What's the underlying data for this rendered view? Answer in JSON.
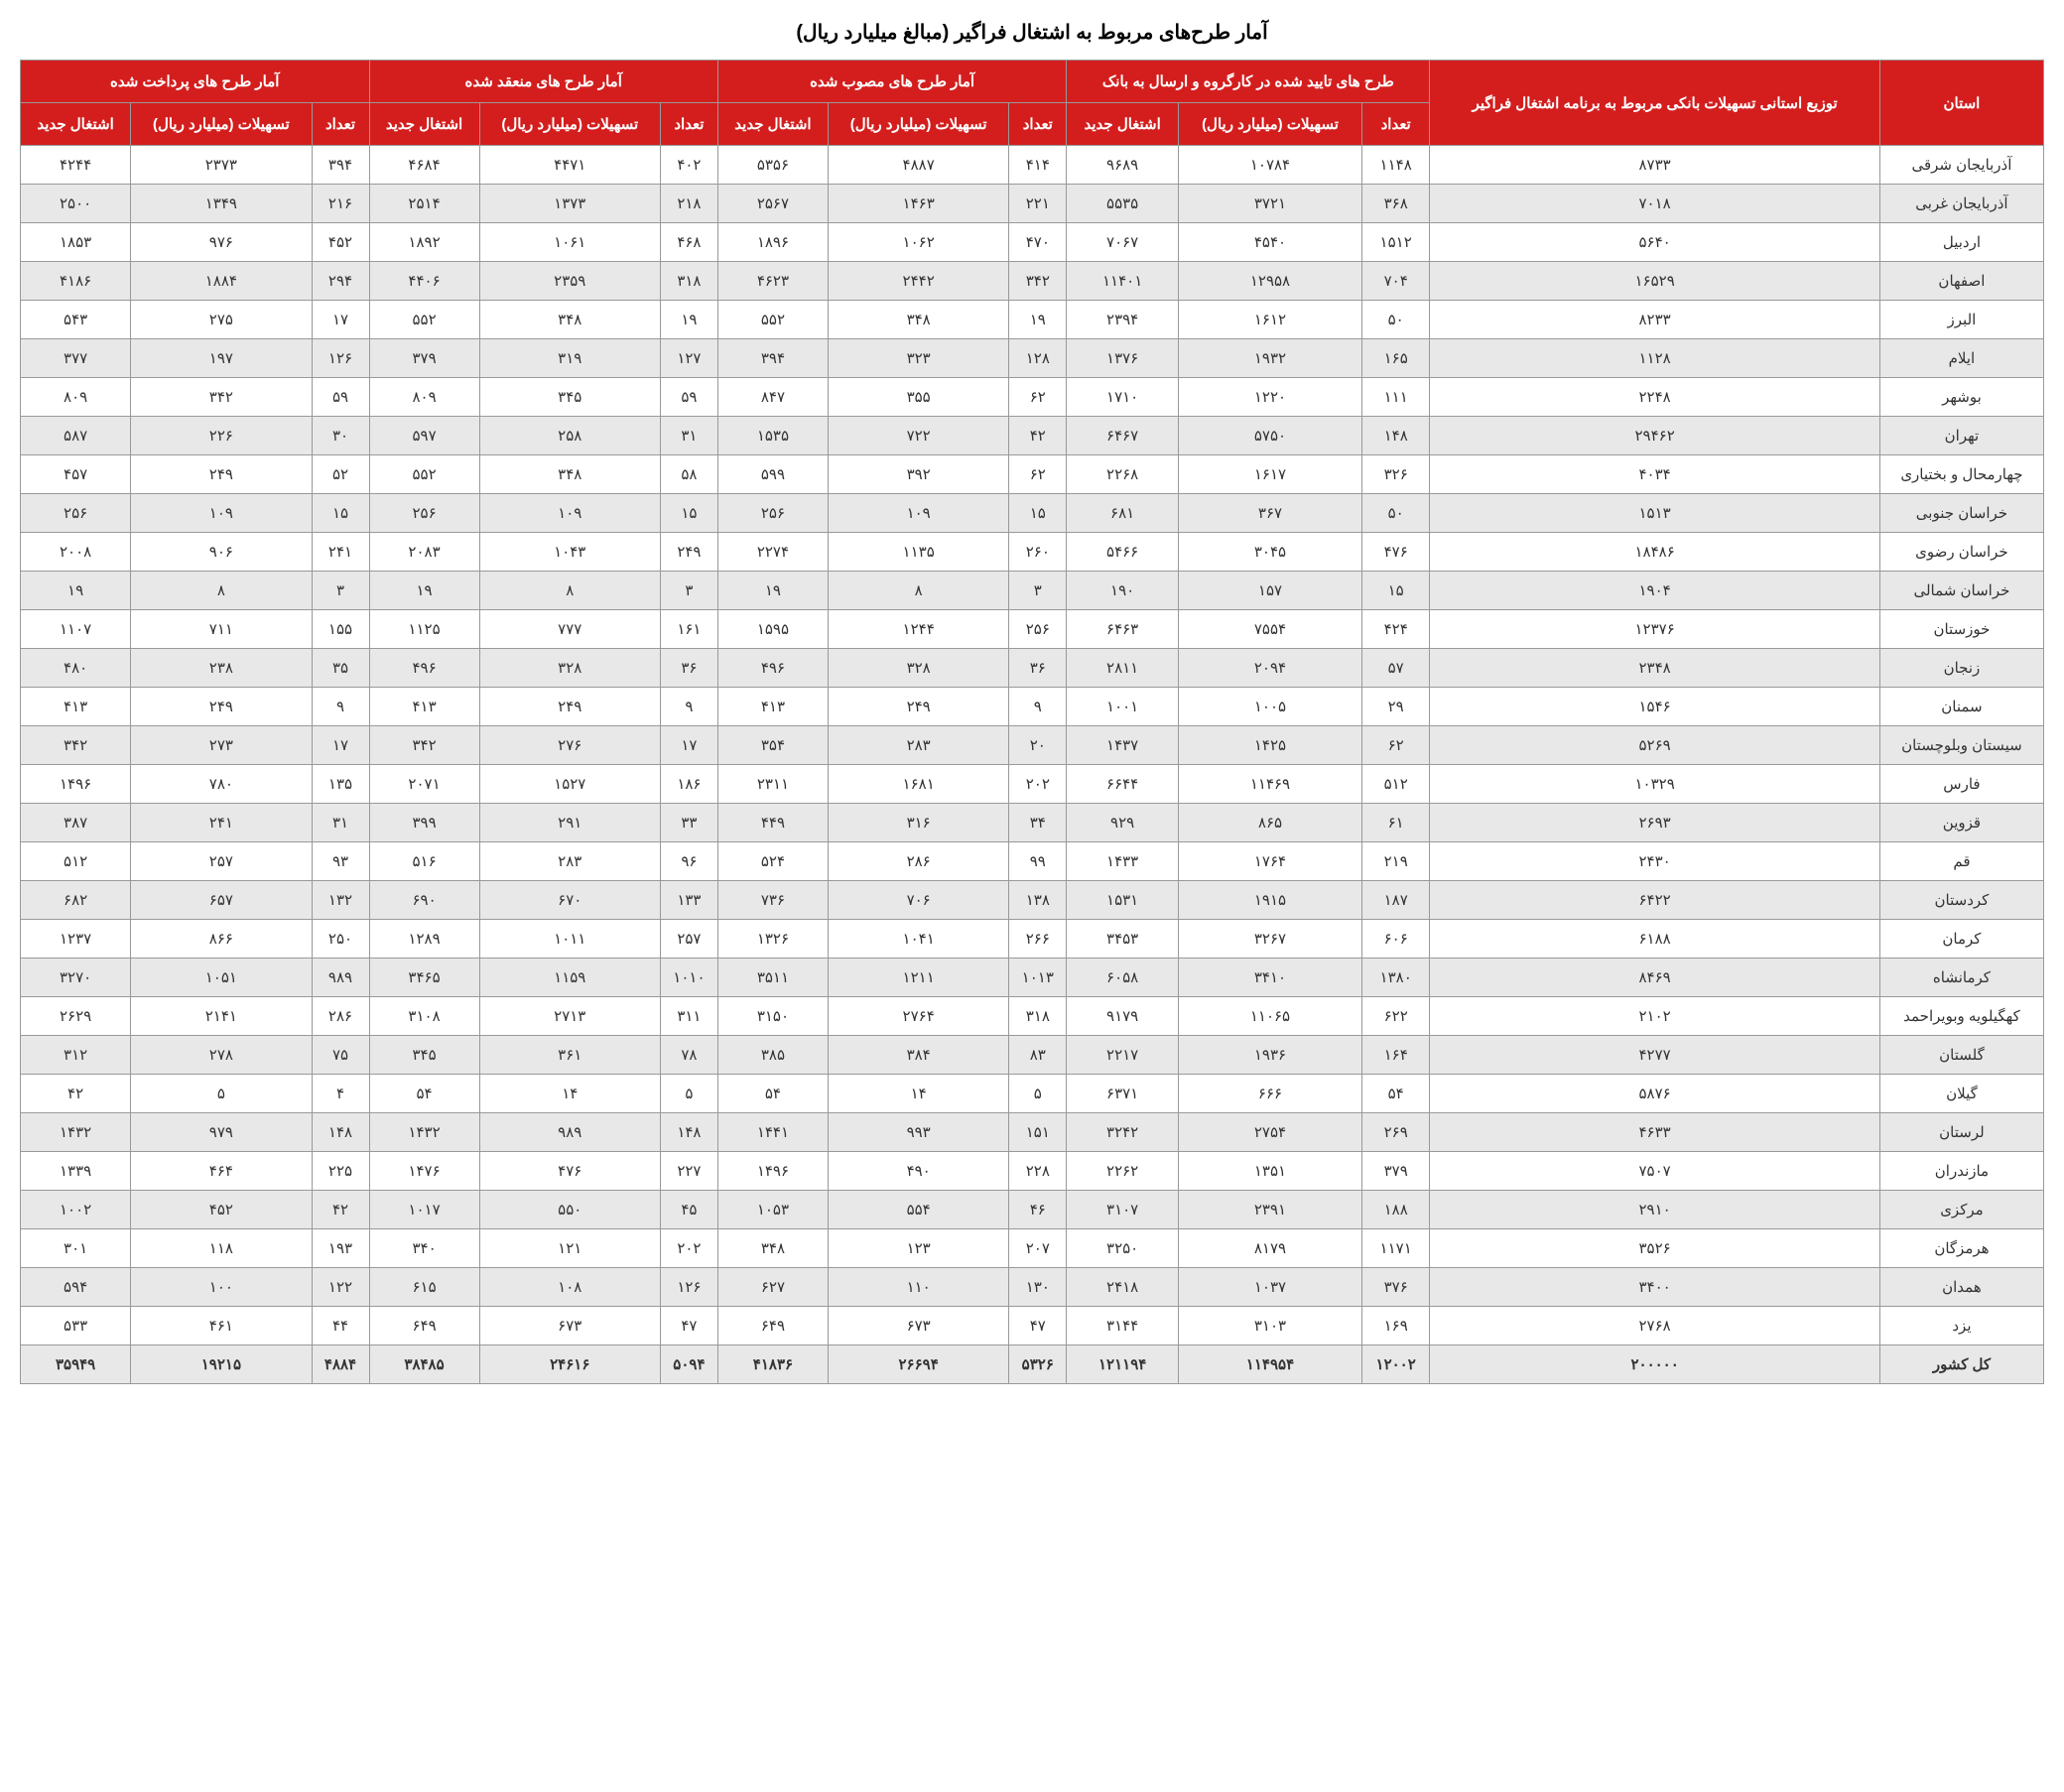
{
  "title": "آمار طرح‌های مربوط به اشتغال فراگیر (مبالغ میلیارد ریال)",
  "header_groups": [
    {
      "label": "استان",
      "colspan": 1,
      "rowspan": 2
    },
    {
      "label": "توزیع استانی تسهیلات بانکی مربوط به برنامه اشتغال فراگیر",
      "colspan": 1,
      "rowspan": 2
    },
    {
      "label": "طرح های تایید شده در کارگروه و ارسال به بانک",
      "colspan": 3,
      "rowspan": 1
    },
    {
      "label": "آمار طرح های مصوب شده",
      "colspan": 3,
      "rowspan": 1
    },
    {
      "label": "آمار طرح های منعقد شده",
      "colspan": 3,
      "rowspan": 1
    },
    {
      "label": "آمار طرح های پرداخت شده",
      "colspan": 3,
      "rowspan": 1
    }
  ],
  "sub_headers": [
    "تعداد",
    "تسهیلات (میلیارد ریال)",
    "اشتغال جدید",
    "تعداد",
    "تسهیلات (میلیارد ریال)",
    "اشتغال جدید",
    "تعداد",
    "تسهیلات (میلیارد ریال)",
    "اشتغال جدید",
    "تعداد",
    "تسهیلات (میلیارد ریال)",
    "اشتغال جدید"
  ],
  "rows": [
    [
      "آذربایجان شرقی",
      "۸۷۳۳",
      "۱۱۴۸",
      "۱۰۷۸۴",
      "۹۶۸۹",
      "۴۱۴",
      "۴۸۸۷",
      "۵۳۵۶",
      "۴۰۲",
      "۴۴۷۱",
      "۴۶۸۴",
      "۳۹۴",
      "۲۳۷۳",
      "۴۲۴۴"
    ],
    [
      "آذربایجان غربی",
      "۷۰۱۸",
      "۳۶۸",
      "۳۷۲۱",
      "۵۵۳۵",
      "۲۲۱",
      "۱۴۶۳",
      "۲۵۶۷",
      "۲۱۸",
      "۱۳۷۳",
      "۲۵۱۴",
      "۲۱۶",
      "۱۳۴۹",
      "۲۵۰۰"
    ],
    [
      "اردبیل",
      "۵۶۴۰",
      "۱۵۱۲",
      "۴۵۴۰",
      "۷۰۶۷",
      "۴۷۰",
      "۱۰۶۲",
      "۱۸۹۶",
      "۴۶۸",
      "۱۰۶۱",
      "۱۸۹۲",
      "۴۵۲",
      "۹۷۶",
      "۱۸۵۳"
    ],
    [
      "اصفهان",
      "۱۶۵۲۹",
      "۷۰۴",
      "۱۲۹۵۸",
      "۱۱۴۰۱",
      "۳۴۲",
      "۲۴۴۲",
      "۴۶۲۳",
      "۳۱۸",
      "۲۳۵۹",
      "۴۴۰۶",
      "۲۹۴",
      "۱۸۸۴",
      "۴۱۸۶"
    ],
    [
      "البرز",
      "۸۲۳۳",
      "۵۰",
      "۱۶۱۲",
      "۲۳۹۴",
      "۱۹",
      "۳۴۸",
      "۵۵۲",
      "۱۹",
      "۳۴۸",
      "۵۵۲",
      "۱۷",
      "۲۷۵",
      "۵۴۳"
    ],
    [
      "ایلام",
      "۱۱۲۸",
      "۱۶۵",
      "۱۹۳۲",
      "۱۳۷۶",
      "۱۲۸",
      "۳۲۳",
      "۳۹۴",
      "۱۲۷",
      "۳۱۹",
      "۳۷۹",
      "۱۲۶",
      "۱۹۷",
      "۳۷۷"
    ],
    [
      "بوشهر",
      "۲۲۴۸",
      "۱۱۱",
      "۱۲۲۰",
      "۱۷۱۰",
      "۶۲",
      "۳۵۵",
      "۸۴۷",
      "۵۹",
      "۳۴۵",
      "۸۰۹",
      "۵۹",
      "۳۴۲",
      "۸۰۹"
    ],
    [
      "تهران",
      "۲۹۴۶۲",
      "۱۴۸",
      "۵۷۵۰",
      "۶۴۶۷",
      "۴۲",
      "۷۲۲",
      "۱۵۳۵",
      "۳۱",
      "۲۵۸",
      "۵۹۷",
      "۳۰",
      "۲۲۶",
      "۵۸۷"
    ],
    [
      "چهارمحال و بختیاری",
      "۴۰۳۴",
      "۳۲۶",
      "۱۶۱۷",
      "۲۲۶۸",
      "۶۲",
      "۳۹۲",
      "۵۹۹",
      "۵۸",
      "۳۴۸",
      "۵۵۲",
      "۵۲",
      "۲۴۹",
      "۴۵۷"
    ],
    [
      "خراسان جنوبی",
      "۱۵۱۳",
      "۵۰",
      "۳۶۷",
      "۶۸۱",
      "۱۵",
      "۱۰۹",
      "۲۵۶",
      "۱۵",
      "۱۰۹",
      "۲۵۶",
      "۱۵",
      "۱۰۹",
      "۲۵۶"
    ],
    [
      "خراسان رضوی",
      "۱۸۴۸۶",
      "۴۷۶",
      "۳۰۴۵",
      "۵۴۶۶",
      "۲۶۰",
      "۱۱۳۵",
      "۲۲۷۴",
      "۲۴۹",
      "۱۰۴۳",
      "۲۰۸۳",
      "۲۴۱",
      "۹۰۶",
      "۲۰۰۸"
    ],
    [
      "خراسان شمالی",
      "۱۹۰۴",
      "۱۵",
      "۱۵۷",
      "۱۹۰",
      "۳",
      "۸",
      "۱۹",
      "۳",
      "۸",
      "۱۹",
      "۳",
      "۸",
      "۱۹"
    ],
    [
      "خوزستان",
      "۱۲۳۷۶",
      "۴۲۴",
      "۷۵۵۴",
      "۶۴۶۳",
      "۲۵۶",
      "۱۲۴۴",
      "۱۵۹۵",
      "۱۶۱",
      "۷۷۷",
      "۱۱۲۵",
      "۱۵۵",
      "۷۱۱",
      "۱۱۰۷"
    ],
    [
      "زنجان",
      "۲۳۴۸",
      "۵۷",
      "۲۰۹۴",
      "۲۸۱۱",
      "۳۶",
      "۳۲۸",
      "۴۹۶",
      "۳۶",
      "۳۲۸",
      "۴۹۶",
      "۳۵",
      "۲۳۸",
      "۴۸۰"
    ],
    [
      "سمنان",
      "۱۵۴۶",
      "۲۹",
      "۱۰۰۵",
      "۱۰۰۱",
      "۹",
      "۲۴۹",
      "۴۱۳",
      "۹",
      "۲۴۹",
      "۴۱۳",
      "۹",
      "۲۴۹",
      "۴۱۳"
    ],
    [
      "سیستان وبلوچستان",
      "۵۲۶۹",
      "۶۲",
      "۱۴۲۵",
      "۱۴۳۷",
      "۲۰",
      "۲۸۳",
      "۳۵۴",
      "۱۷",
      "۲۷۶",
      "۳۴۲",
      "۱۷",
      "۲۷۳",
      "۳۴۲"
    ],
    [
      "فارس",
      "۱۰۳۲۹",
      "۵۱۲",
      "۱۱۴۶۹",
      "۶۶۴۴",
      "۲۰۲",
      "۱۶۸۱",
      "۲۳۱۱",
      "۱۸۶",
      "۱۵۲۷",
      "۲۰۷۱",
      "۱۳۵",
      "۷۸۰",
      "۱۴۹۶"
    ],
    [
      "قزوین",
      "۲۶۹۳",
      "۶۱",
      "۸۶۵",
      "۹۲۹",
      "۳۴",
      "۳۱۶",
      "۴۴۹",
      "۳۳",
      "۲۹۱",
      "۳۹۹",
      "۳۱",
      "۲۴۱",
      "۳۸۷"
    ],
    [
      "قم",
      "۲۴۳۰",
      "۲۱۹",
      "۱۷۶۴",
      "۱۴۳۳",
      "۹۹",
      "۲۸۶",
      "۵۲۴",
      "۹۶",
      "۲۸۳",
      "۵۱۶",
      "۹۳",
      "۲۵۷",
      "۵۱۲"
    ],
    [
      "کردستان",
      "۶۴۲۲",
      "۱۸۷",
      "۱۹۱۵",
      "۱۵۳۱",
      "۱۳۸",
      "۷۰۶",
      "۷۳۶",
      "۱۳۳",
      "۶۷۰",
      "۶۹۰",
      "۱۳۲",
      "۶۵۷",
      "۶۸۲"
    ],
    [
      "کرمان",
      "۶۱۸۸",
      "۶۰۶",
      "۳۲۶۷",
      "۳۴۵۳",
      "۲۶۶",
      "۱۰۴۱",
      "۱۳۲۶",
      "۲۵۷",
      "۱۰۱۱",
      "۱۲۸۹",
      "۲۵۰",
      "۸۶۶",
      "۱۲۳۷"
    ],
    [
      "کرمانشاه",
      "۸۴۶۹",
      "۱۳۸۰",
      "۳۴۱۰",
      "۶۰۵۸",
      "۱۰۱۳",
      "۱۲۱۱",
      "۳۵۱۱",
      "۱۰۱۰",
      "۱۱۵۹",
      "۳۴۶۵",
      "۹۸۹",
      "۱۰۵۱",
      "۳۲۷۰"
    ],
    [
      "کهگیلویه وبویراحمد",
      "۲۱۰۲",
      "۶۲۲",
      "۱۱۰۶۵",
      "۹۱۷۹",
      "۳۱۸",
      "۲۷۶۴",
      "۳۱۵۰",
      "۳۱۱",
      "۲۷۱۳",
      "۳۱۰۸",
      "۲۸۶",
      "۲۱۴۱",
      "۲۶۲۹"
    ],
    [
      "گلستان",
      "۴۲۷۷",
      "۱۶۴",
      "۱۹۳۶",
      "۲۲۱۷",
      "۸۳",
      "۳۸۴",
      "۳۸۵",
      "۷۸",
      "۳۶۱",
      "۳۴۵",
      "۷۵",
      "۲۷۸",
      "۳۱۲"
    ],
    [
      "گیلان",
      "۵۸۷۶",
      "۵۴",
      "۶۶۶",
      "۶۳۷۱",
      "۵",
      "۱۴",
      "۵۴",
      "۵",
      "۱۴",
      "۵۴",
      "۴",
      "۵",
      "۴۲"
    ],
    [
      "لرستان",
      "۴۶۳۳",
      "۲۶۹",
      "۲۷۵۴",
      "۳۲۴۲",
      "۱۵۱",
      "۹۹۳",
      "۱۴۴۱",
      "۱۴۸",
      "۹۸۹",
      "۱۴۳۲",
      "۱۴۸",
      "۹۷۹",
      "۱۴۳۲"
    ],
    [
      "مازندران",
      "۷۵۰۷",
      "۳۷۹",
      "۱۳۵۱",
      "۲۲۶۲",
      "۲۲۸",
      "۴۹۰",
      "۱۴۹۶",
      "۲۲۷",
      "۴۷۶",
      "۱۴۷۶",
      "۲۲۵",
      "۴۶۴",
      "۱۳۳۹"
    ],
    [
      "مرکزی",
      "۲۹۱۰",
      "۱۸۸",
      "۲۳۹۱",
      "۳۱۰۷",
      "۴۶",
      "۵۵۴",
      "۱۰۵۳",
      "۴۵",
      "۵۵۰",
      "۱۰۱۷",
      "۴۲",
      "۴۵۲",
      "۱۰۰۲"
    ],
    [
      "هرمزگان",
      "۳۵۲۶",
      "۱۱۷۱",
      "۸۱۷۹",
      "۳۲۵۰",
      "۲۰۷",
      "۱۲۳",
      "۳۴۸",
      "۲۰۲",
      "۱۲۱",
      "۳۴۰",
      "۱۹۳",
      "۱۱۸",
      "۳۰۱"
    ],
    [
      "همدان",
      "۳۴۰۰",
      "۳۷۶",
      "۱۰۳۷",
      "۲۴۱۸",
      "۱۳۰",
      "۱۱۰",
      "۶۲۷",
      "۱۲۶",
      "۱۰۸",
      "۶۱۵",
      "۱۲۲",
      "۱۰۰",
      "۵۹۴"
    ],
    [
      "یزد",
      "۲۷۶۸",
      "۱۶۹",
      "۳۱۰۳",
      "۳۱۴۴",
      "۴۷",
      "۶۷۳",
      "۶۴۹",
      "۴۷",
      "۶۷۳",
      "۶۴۹",
      "۴۴",
      "۴۶۱",
      "۵۳۳"
    ]
  ],
  "total_row": [
    "کل کشور",
    "۲۰۰۰۰۰",
    "۱۲۰۰۲",
    "۱۱۴۹۵۴",
    "۱۲۱۱۹۴",
    "۵۳۲۶",
    "۲۶۶۹۴",
    "۴۱۸۳۶",
    "۵۰۹۴",
    "۲۴۶۱۶",
    "۳۸۴۸۵",
    "۴۸۸۴",
    "۱۹۲۱۵",
    "۳۵۹۴۹"
  ]
}
